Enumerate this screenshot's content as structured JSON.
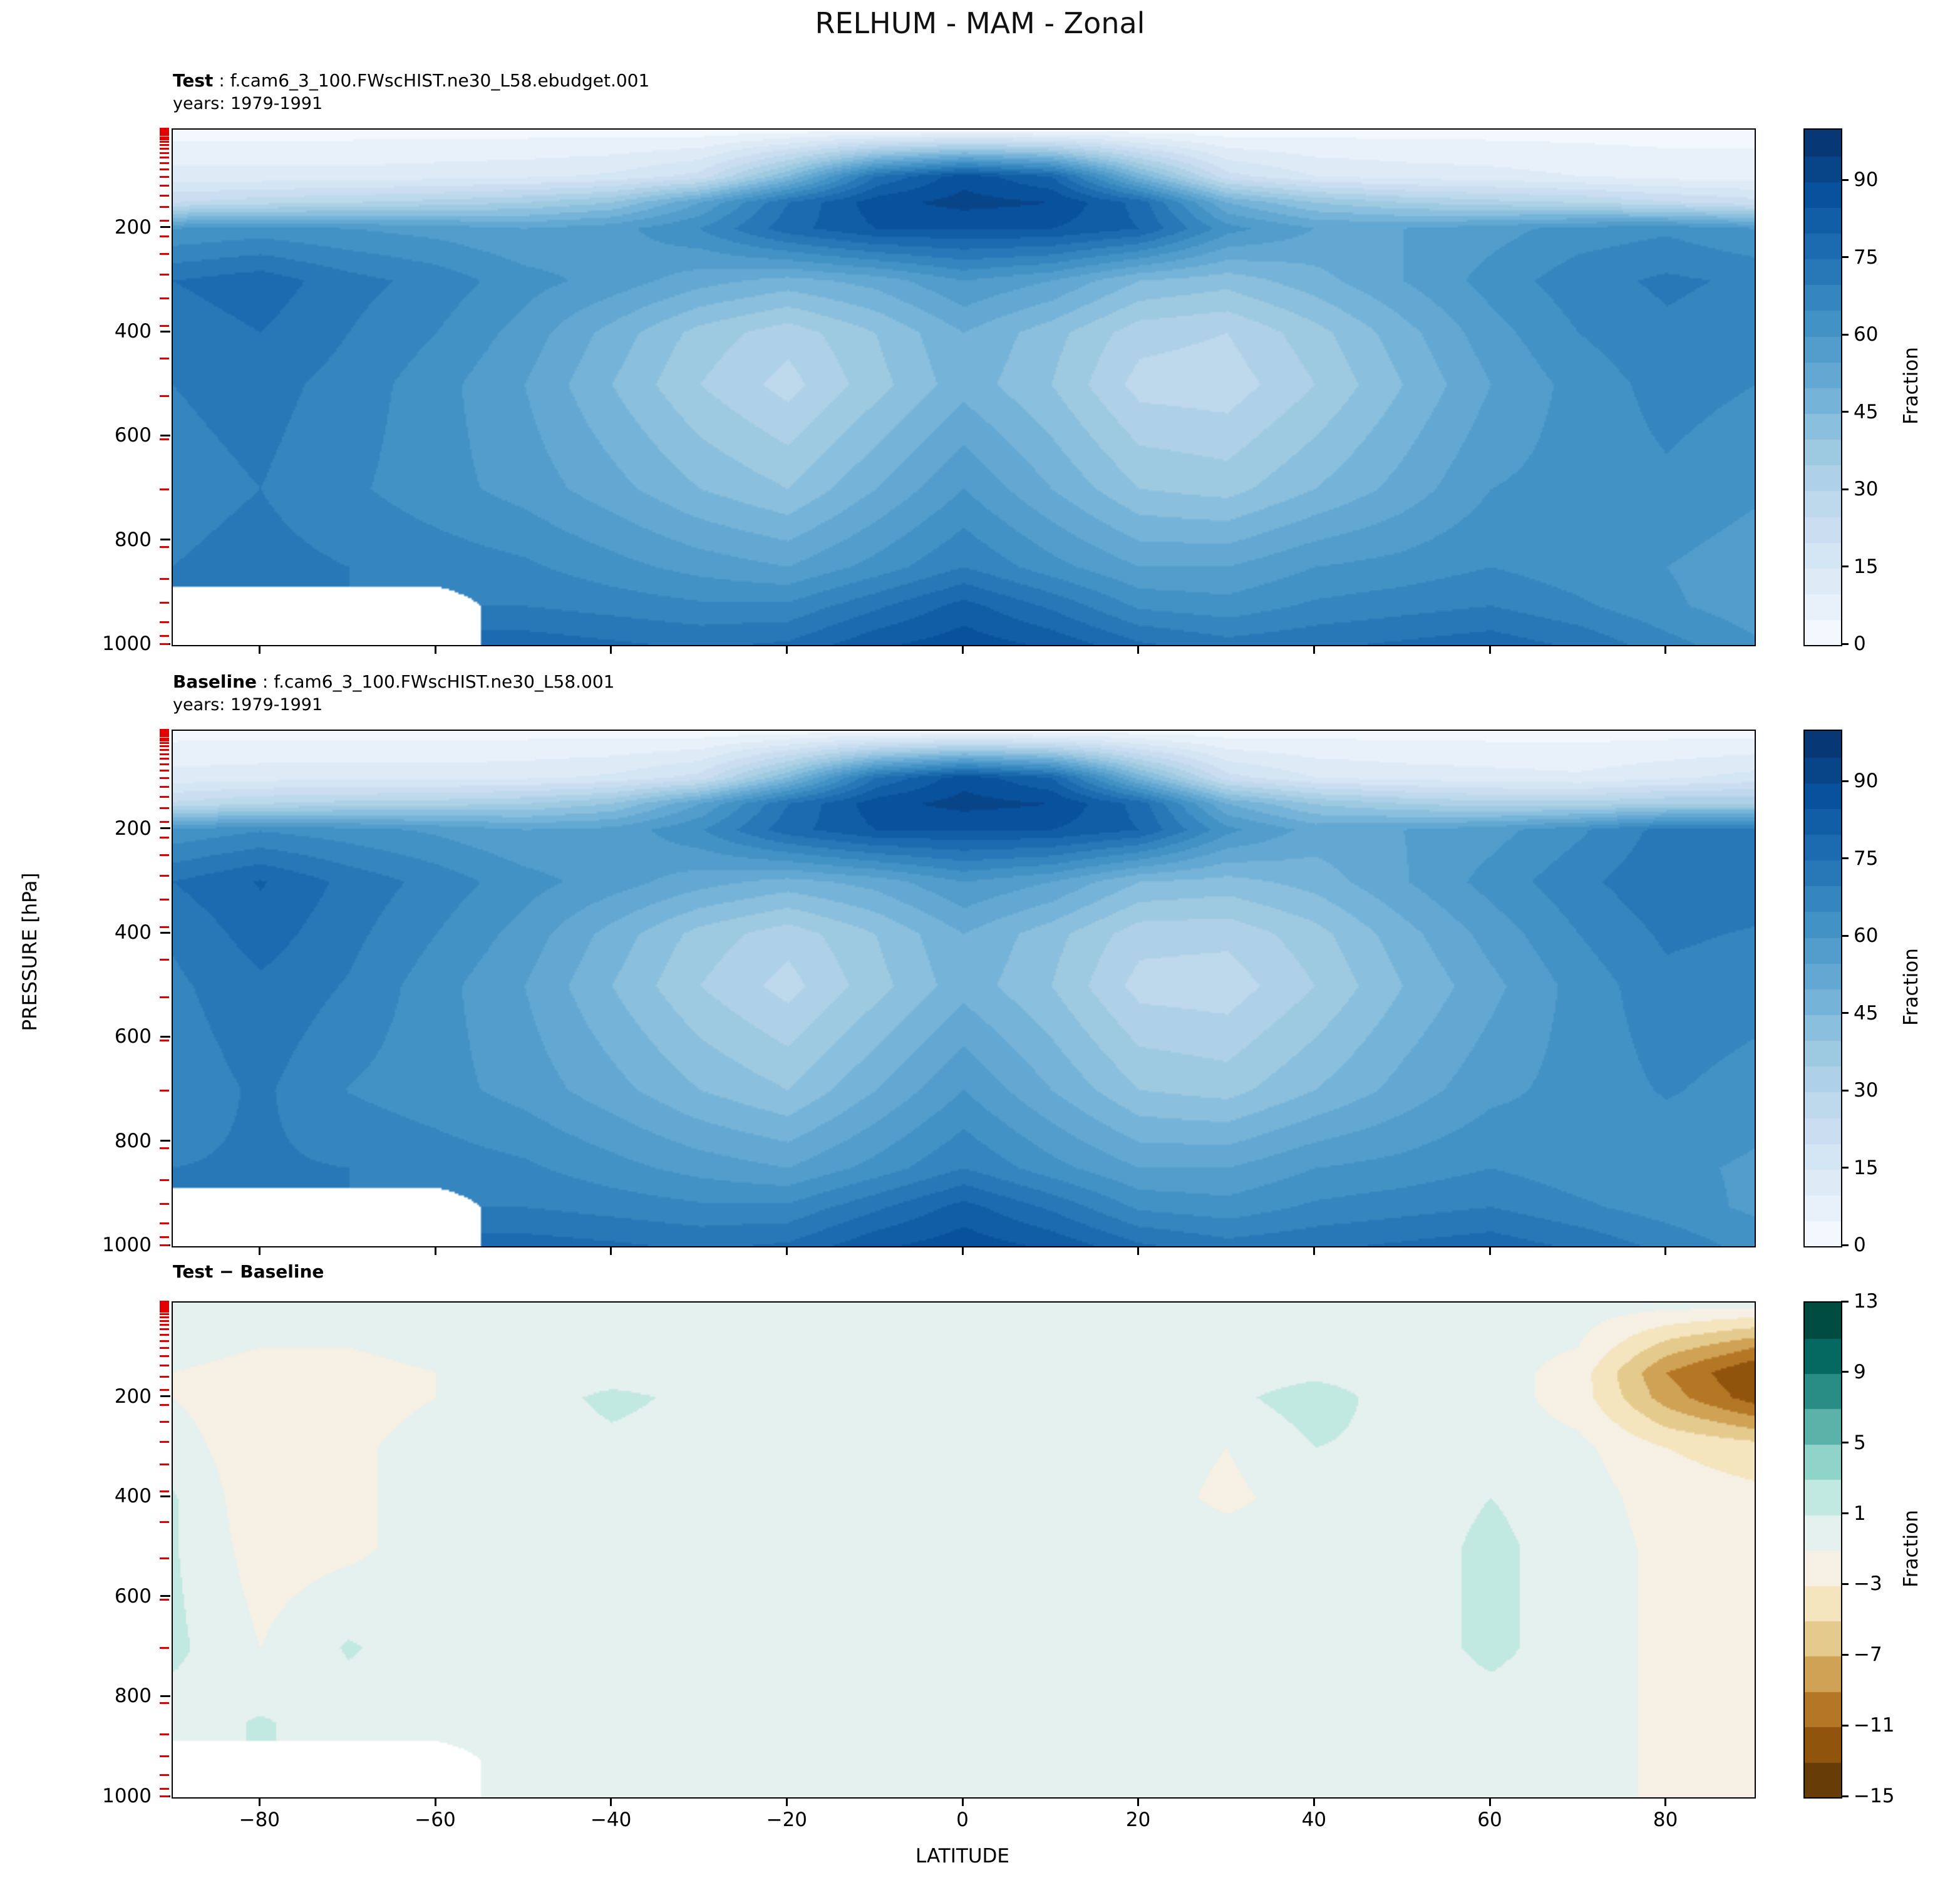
{
  "title": "RELHUM - MAM - Zonal",
  "panels": [
    {
      "id": "test",
      "label_bold": "Test",
      "label_rest": " : f.cam6_3_100.FWscHIST.ne30_L58.ebudget.001",
      "years": "years: 1979-1991"
    },
    {
      "id": "baseline",
      "label_bold": "Baseline",
      "label_rest": " : f.cam6_3_100.FWscHIST.ne30_L58.001",
      "years": "years: 1979-1991"
    },
    {
      "id": "diff",
      "label_bold": "Test − Baseline",
      "label_rest": "",
      "years": ""
    }
  ],
  "axes": {
    "xlabel": "LATITUDE",
    "ylabel": "PRESSURE [hPa]",
    "xticks": [
      -80,
      -60,
      -40,
      -20,
      0,
      20,
      40,
      60,
      80
    ],
    "yticks": [
      200,
      400,
      600,
      800,
      1000
    ],
    "xlim": [
      -90,
      90
    ],
    "pressure_top_hPa": 10,
    "pressure_bottom_hPa": 1000
  },
  "colorbars": [
    {
      "label": "Fraction",
      "ticks": [
        90,
        75,
        60,
        45,
        30,
        15,
        0
      ],
      "vmin": 0,
      "vmax": 100,
      "step": 5,
      "colormap": "Blues"
    },
    {
      "label": "Fraction",
      "ticks": [
        90,
        75,
        60,
        45,
        30,
        15,
        0
      ],
      "vmin": 0,
      "vmax": 100,
      "step": 5,
      "colormap": "Blues"
    },
    {
      "label": "Fraction",
      "ticks": [
        13,
        9,
        5,
        1,
        -3,
        -7,
        -11,
        -15
      ],
      "vmin": -15,
      "vmax": 13,
      "step": 2,
      "colormap": "BrBG"
    }
  ],
  "colors": {
    "model_level_tick": "#e50000",
    "axis": "#000000",
    "background": "#ffffff"
  },
  "chart_data": {
    "type": "heatmap",
    "variable": "RELHUM",
    "season": "MAM",
    "projection": "Zonal mean (latitude vs pressure)",
    "value_units": "Fraction",
    "x_latitude": [
      -90,
      -80,
      -70,
      -60,
      -50,
      -40,
      -30,
      -20,
      -10,
      0,
      10,
      20,
      30,
      40,
      50,
      60,
      70,
      80,
      90
    ],
    "y_pressure_hPa": [
      10,
      100,
      150,
      200,
      300,
      400,
      500,
      700,
      850,
      925,
      1000
    ],
    "contour_step": 5,
    "value_range": [
      0,
      100
    ],
    "diff_contour_step": 2,
    "diff_value_range": [
      -15,
      13
    ],
    "masked_note": "null = below-surface (white) region over Antarctica",
    "model_level_pressures_hPa": [
      10,
      11,
      13,
      15,
      17,
      20,
      23,
      27,
      31,
      36,
      42,
      49,
      57,
      66,
      77,
      89,
      103,
      120,
      139,
      161,
      187,
      217,
      251,
      291,
      337,
      390,
      452,
      524,
      607,
      703,
      814,
      876,
      921,
      958,
      985,
      1000
    ],
    "series": [
      {
        "name": "Test",
        "values": [
          [
            3,
            3,
            3,
            3,
            3,
            3,
            2,
            2,
            2,
            2,
            2,
            2,
            2,
            3,
            3,
            3,
            3,
            3,
            3
          ],
          [
            12,
            12,
            12,
            13,
            14,
            16,
            22,
            45,
            75,
            88,
            80,
            48,
            22,
            15,
            13,
            12,
            10,
            8,
            8
          ],
          [
            25,
            28,
            30,
            32,
            35,
            40,
            55,
            75,
            88,
            92,
            90,
            78,
            50,
            40,
            35,
            32,
            30,
            26,
            22
          ],
          [
            60,
            62,
            60,
            58,
            55,
            58,
            65,
            78,
            85,
            85,
            85,
            80,
            62,
            55,
            55,
            58,
            62,
            64,
            60
          ],
          [
            75,
            78,
            72,
            68,
            62,
            58,
            52,
            48,
            52,
            60,
            55,
            45,
            42,
            48,
            55,
            62,
            68,
            71,
            69
          ],
          [
            72,
            75,
            70,
            65,
            58,
            48,
            38,
            32,
            40,
            50,
            42,
            32,
            30,
            38,
            48,
            58,
            65,
            69,
            67
          ],
          [
            70,
            72,
            68,
            62,
            55,
            45,
            35,
            28,
            38,
            48,
            40,
            28,
            27,
            35,
            45,
            55,
            62,
            67,
            65
          ],
          [
            68,
            70,
            66,
            62,
            58,
            52,
            45,
            40,
            50,
            60,
            50,
            40,
            38,
            45,
            52,
            60,
            62,
            64,
            61
          ],
          [
            70,
            72,
            70,
            68,
            66,
            62,
            58,
            55,
            62,
            70,
            62,
            55,
            55,
            60,
            62,
            65,
            62,
            60,
            57
          ],
          [
            null,
            null,
            null,
            null,
            70,
            68,
            66,
            66,
            74,
            82,
            74,
            64,
            62,
            66,
            68,
            70,
            66,
            61,
            57
          ],
          [
            null,
            null,
            null,
            null,
            78,
            76,
            74,
            76,
            84,
            88,
            84,
            76,
            72,
            74,
            76,
            78,
            74,
            67,
            61
          ]
        ]
      },
      {
        "name": "Baseline",
        "values": [
          [
            3,
            3,
            3,
            3,
            3,
            3,
            2,
            2,
            2,
            2,
            2,
            2,
            2,
            3,
            3,
            3,
            3,
            3,
            3
          ],
          [
            12,
            13,
            13,
            13,
            14,
            16,
            22,
            45,
            75,
            88,
            80,
            48,
            22,
            15,
            13,
            12,
            11,
            14,
            17
          ],
          [
            26,
            30,
            32,
            33,
            35,
            40,
            55,
            75,
            88,
            92,
            90,
            78,
            50,
            39.5,
            35,
            32,
            32,
            35,
            35
          ],
          [
            61,
            64.5,
            62,
            59,
            55,
            56.5,
            64.5,
            78,
            85,
            85,
            85,
            80,
            61.5,
            53,
            55,
            58,
            64,
            72,
            72
          ],
          [
            75,
            80.5,
            73.5,
            68,
            62,
            57.5,
            52,
            48,
            52,
            60,
            55,
            45,
            43,
            47,
            54.5,
            62,
            68.5,
            74,
            73
          ],
          [
            70.8,
            77.5,
            71.5,
            65,
            58,
            48,
            38,
            32,
            40,
            50,
            42,
            32,
            31.5,
            38,
            48,
            57,
            65,
            71,
            69.5
          ],
          [
            68.8,
            74,
            69.5,
            62,
            55,
            45,
            35,
            28,
            38,
            48,
            40,
            28,
            27,
            35,
            45,
            53.5,
            62,
            68.5,
            67
          ],
          [
            66.5,
            71,
            64.8,
            62,
            58,
            52,
            45,
            40,
            50,
            60,
            50,
            40,
            38,
            45,
            52,
            58.5,
            62,
            65.5,
            63
          ],
          [
            70,
            70.8,
            70,
            68,
            66,
            62,
            58,
            55,
            62,
            70,
            62,
            55,
            55,
            60,
            62,
            65,
            62,
            61.5,
            59
          ],
          [
            null,
            null,
            null,
            null,
            70,
            68,
            66,
            66,
            74,
            82,
            74,
            64,
            62,
            66,
            68,
            70,
            66,
            62.5,
            59
          ],
          [
            null,
            null,
            null,
            null,
            77.5,
            76,
            74,
            76,
            84,
            88,
            84,
            76,
            72,
            74,
            76,
            78,
            74,
            68.5,
            63
          ]
        ]
      },
      {
        "name": "Test - Baseline",
        "values": [
          [
            0,
            0,
            0,
            0,
            0,
            0,
            0,
            0,
            0,
            0,
            0,
            0,
            0,
            0,
            0,
            0,
            0,
            0,
            0
          ],
          [
            0,
            -1,
            -1,
            0,
            0,
            0,
            0,
            0,
            0,
            0,
            0,
            0,
            0,
            0,
            0,
            0,
            -1,
            -6,
            -9
          ],
          [
            -1,
            -2,
            -2,
            -1,
            0,
            0,
            0,
            0,
            0,
            0,
            0,
            0,
            0,
            0.5,
            0,
            0,
            -2,
            -9,
            -13
          ],
          [
            -1,
            -2.5,
            -2,
            -1,
            0,
            1.5,
            0.5,
            0,
            0,
            0,
            0,
            0,
            0.5,
            2,
            0,
            0,
            -2,
            -8,
            -12
          ],
          [
            0,
            -2.5,
            -1.5,
            0,
            0,
            0.5,
            0,
            0,
            0,
            0,
            0,
            0,
            -1,
            1,
            0.5,
            0,
            -0.5,
            -3,
            -4
          ],
          [
            1.2,
            -2.5,
            -1.5,
            0,
            0,
            0,
            0,
            0,
            0,
            0,
            0,
            0,
            -1.5,
            0,
            0,
            1,
            0,
            -2,
            -2.5
          ],
          [
            1.2,
            -2,
            -1.5,
            0,
            0,
            0,
            0,
            0,
            0,
            0,
            0,
            0,
            0,
            0,
            0,
            1.5,
            0,
            -1.5,
            -2
          ],
          [
            1.5,
            -1,
            1.2,
            0,
            0,
            0,
            0,
            0,
            0,
            0,
            0,
            0,
            0,
            0,
            0,
            1.5,
            0,
            -1.5,
            -2
          ],
          [
            0,
            1.2,
            0,
            0,
            0,
            0,
            0,
            0,
            0,
            0,
            0,
            0,
            0,
            0,
            0,
            0,
            0,
            -1.5,
            -2
          ],
          [
            null,
            null,
            null,
            null,
            0,
            0,
            0,
            0,
            0,
            0,
            0,
            0,
            0,
            0,
            0,
            0,
            0,
            -1.5,
            -2
          ],
          [
            null,
            null,
            null,
            null,
            0.5,
            0,
            0,
            0,
            0,
            0,
            0,
            0,
            0,
            0,
            0,
            0,
            0,
            -1.5,
            -2
          ]
        ]
      }
    ]
  }
}
